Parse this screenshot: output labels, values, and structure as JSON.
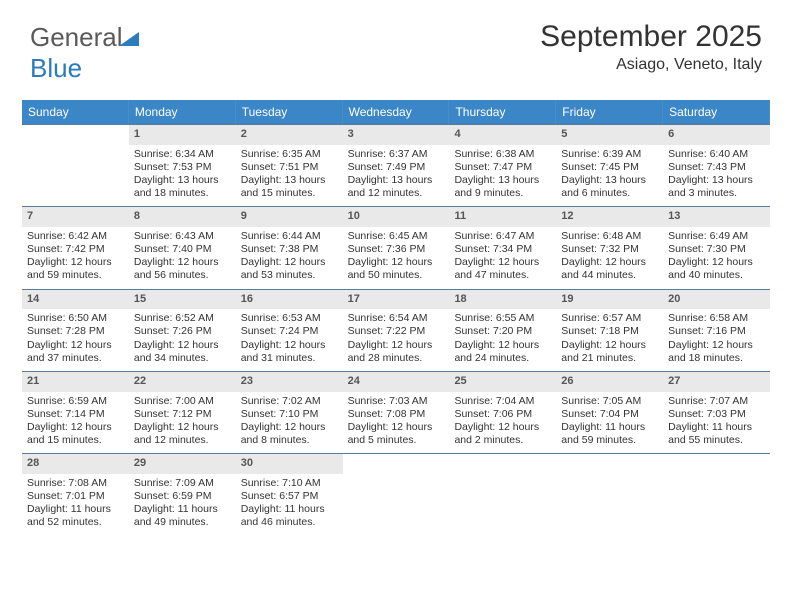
{
  "logo": {
    "text1": "General",
    "text2": "Blue"
  },
  "header": {
    "month_title": "September 2025",
    "location": "Asiago, Veneto, Italy"
  },
  "colors": {
    "header_bg": "#3b86c6",
    "header_text": "#ffffff",
    "daynum_bg": "#e9e9e9",
    "daynum_text": "#555555",
    "border": "#5a7a9a",
    "body_text": "#333333",
    "logo_gray": "#5a5a5a",
    "logo_blue": "#2b7bbf"
  },
  "day_labels": [
    "Sunday",
    "Monday",
    "Tuesday",
    "Wednesday",
    "Thursday",
    "Friday",
    "Saturday"
  ],
  "weeks": [
    [
      {
        "blank": true
      },
      {
        "n": "1",
        "sr": "6:34 AM",
        "ss": "7:53 PM",
        "dl": "13 hours and 18 minutes."
      },
      {
        "n": "2",
        "sr": "6:35 AM",
        "ss": "7:51 PM",
        "dl": "13 hours and 15 minutes."
      },
      {
        "n": "3",
        "sr": "6:37 AM",
        "ss": "7:49 PM",
        "dl": "13 hours and 12 minutes."
      },
      {
        "n": "4",
        "sr": "6:38 AM",
        "ss": "7:47 PM",
        "dl": "13 hours and 9 minutes."
      },
      {
        "n": "5",
        "sr": "6:39 AM",
        "ss": "7:45 PM",
        "dl": "13 hours and 6 minutes."
      },
      {
        "n": "6",
        "sr": "6:40 AM",
        "ss": "7:43 PM",
        "dl": "13 hours and 3 minutes."
      }
    ],
    [
      {
        "n": "7",
        "sr": "6:42 AM",
        "ss": "7:42 PM",
        "dl": "12 hours and 59 minutes."
      },
      {
        "n": "8",
        "sr": "6:43 AM",
        "ss": "7:40 PM",
        "dl": "12 hours and 56 minutes."
      },
      {
        "n": "9",
        "sr": "6:44 AM",
        "ss": "7:38 PM",
        "dl": "12 hours and 53 minutes."
      },
      {
        "n": "10",
        "sr": "6:45 AM",
        "ss": "7:36 PM",
        "dl": "12 hours and 50 minutes."
      },
      {
        "n": "11",
        "sr": "6:47 AM",
        "ss": "7:34 PM",
        "dl": "12 hours and 47 minutes."
      },
      {
        "n": "12",
        "sr": "6:48 AM",
        "ss": "7:32 PM",
        "dl": "12 hours and 44 minutes."
      },
      {
        "n": "13",
        "sr": "6:49 AM",
        "ss": "7:30 PM",
        "dl": "12 hours and 40 minutes."
      }
    ],
    [
      {
        "n": "14",
        "sr": "6:50 AM",
        "ss": "7:28 PM",
        "dl": "12 hours and 37 minutes."
      },
      {
        "n": "15",
        "sr": "6:52 AM",
        "ss": "7:26 PM",
        "dl": "12 hours and 34 minutes."
      },
      {
        "n": "16",
        "sr": "6:53 AM",
        "ss": "7:24 PM",
        "dl": "12 hours and 31 minutes."
      },
      {
        "n": "17",
        "sr": "6:54 AM",
        "ss": "7:22 PM",
        "dl": "12 hours and 28 minutes."
      },
      {
        "n": "18",
        "sr": "6:55 AM",
        "ss": "7:20 PM",
        "dl": "12 hours and 24 minutes."
      },
      {
        "n": "19",
        "sr": "6:57 AM",
        "ss": "7:18 PM",
        "dl": "12 hours and 21 minutes."
      },
      {
        "n": "20",
        "sr": "6:58 AM",
        "ss": "7:16 PM",
        "dl": "12 hours and 18 minutes."
      }
    ],
    [
      {
        "n": "21",
        "sr": "6:59 AM",
        "ss": "7:14 PM",
        "dl": "12 hours and 15 minutes."
      },
      {
        "n": "22",
        "sr": "7:00 AM",
        "ss": "7:12 PM",
        "dl": "12 hours and 12 minutes."
      },
      {
        "n": "23",
        "sr": "7:02 AM",
        "ss": "7:10 PM",
        "dl": "12 hours and 8 minutes."
      },
      {
        "n": "24",
        "sr": "7:03 AM",
        "ss": "7:08 PM",
        "dl": "12 hours and 5 minutes."
      },
      {
        "n": "25",
        "sr": "7:04 AM",
        "ss": "7:06 PM",
        "dl": "12 hours and 2 minutes."
      },
      {
        "n": "26",
        "sr": "7:05 AM",
        "ss": "7:04 PM",
        "dl": "11 hours and 59 minutes."
      },
      {
        "n": "27",
        "sr": "7:07 AM",
        "ss": "7:03 PM",
        "dl": "11 hours and 55 minutes."
      }
    ],
    [
      {
        "n": "28",
        "sr": "7:08 AM",
        "ss": "7:01 PM",
        "dl": "11 hours and 52 minutes."
      },
      {
        "n": "29",
        "sr": "7:09 AM",
        "ss": "6:59 PM",
        "dl": "11 hours and 49 minutes."
      },
      {
        "n": "30",
        "sr": "7:10 AM",
        "ss": "6:57 PM",
        "dl": "11 hours and 46 minutes."
      },
      {
        "blank": true
      },
      {
        "blank": true
      },
      {
        "blank": true
      },
      {
        "blank": true
      }
    ]
  ],
  "labels": {
    "sunrise": "Sunrise: ",
    "sunset": "Sunset: ",
    "daylight": "Daylight: "
  }
}
